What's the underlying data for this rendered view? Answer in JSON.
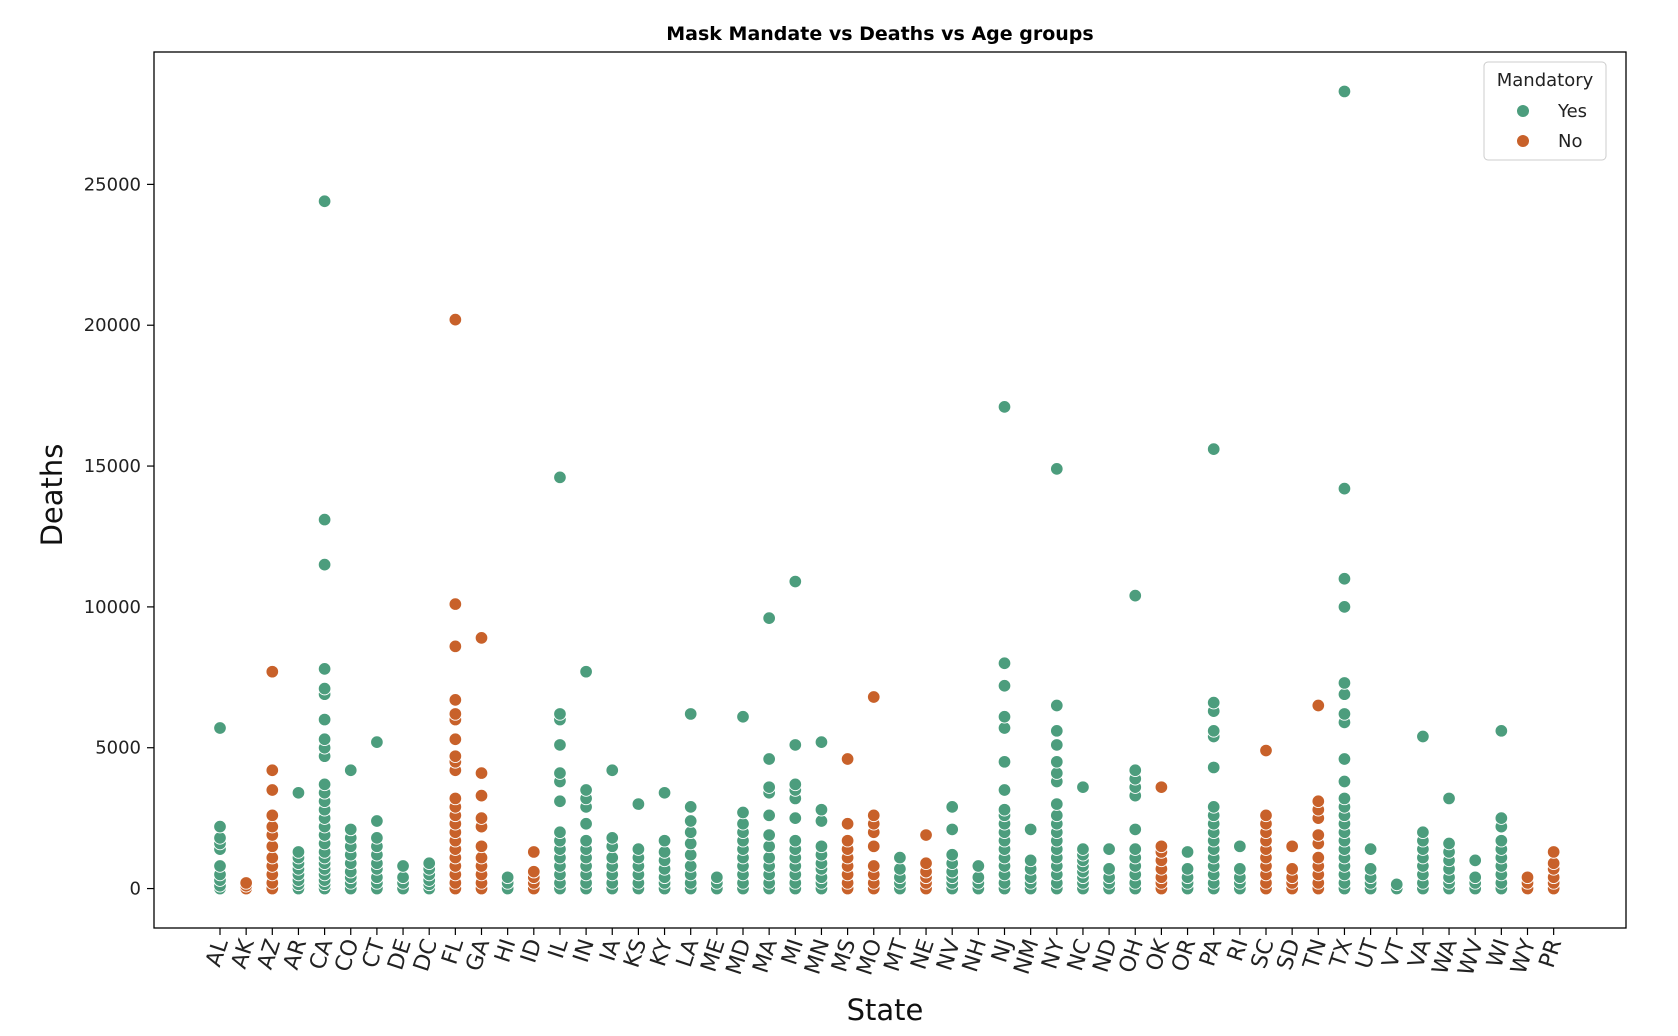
{
  "chart_data": {
    "type": "scatter",
    "title": "Mask Mandate vs Deaths vs Age groups",
    "xlabel": "State",
    "ylabel": "Deaths",
    "ylim": [
      -1400,
      29700
    ],
    "yticks": [
      0,
      5000,
      10000,
      15000,
      20000,
      25000
    ],
    "grid": false,
    "legend": {
      "title": "Mandatory",
      "position": "top-right"
    },
    "categories": [
      "AL",
      "AK",
      "AZ",
      "AR",
      "CA",
      "CO",
      "CT",
      "DE",
      "DC",
      "FL",
      "GA",
      "HI",
      "ID",
      "IL",
      "IN",
      "IA",
      "KS",
      "KY",
      "LA",
      "ME",
      "MD",
      "MA",
      "MI",
      "MN",
      "MS",
      "MO",
      "MT",
      "NE",
      "NV",
      "NH",
      "NJ",
      "NM",
      "NY",
      "NC",
      "ND",
      "OH",
      "OK",
      "OR",
      "PA",
      "RI",
      "SC",
      "SD",
      "TN",
      "TX",
      "UT",
      "VT",
      "VA",
      "WA",
      "WV",
      "WI",
      "WY",
      "PR"
    ],
    "series": [
      {
        "name": "Yes",
        "color": "#4c9d7d",
        "points": [
          {
            "x": "AL",
            "y": [
              0,
              100,
              300,
              500,
              800,
              1400,
              1600,
              1800,
              2200,
              5700
            ]
          },
          {
            "x": "AR",
            "y": [
              0,
              150,
              300,
              500,
              700,
              900,
              1100,
              1300,
              3400
            ]
          },
          {
            "x": "CA",
            "y": [
              0,
              150,
              300,
              500,
              700,
              900,
              1100,
              1300,
              1600,
              1900,
              2200,
              2500,
              2800,
              3100,
              3400,
              3700,
              4700,
              5000,
              5300,
              6000,
              6900,
              7100,
              7800,
              11500,
              13100,
              24400
            ]
          },
          {
            "x": "CO",
            "y": [
              0,
              200,
              400,
              600,
              900,
              1200,
              1500,
              1800,
              2100,
              4200
            ]
          },
          {
            "x": "CT",
            "y": [
              0,
              200,
              400,
              700,
              900,
              1200,
              1500,
              1800,
              2400,
              5200
            ]
          },
          {
            "x": "DE",
            "y": [
              0,
              200,
              400,
              800
            ]
          },
          {
            "x": "DC",
            "y": [
              0,
              150,
              300,
              500,
              700,
              900
            ]
          },
          {
            "x": "HI",
            "y": [
              0,
              200,
              400
            ]
          },
          {
            "x": "IL",
            "y": [
              0,
              200,
              500,
              800,
              1100,
              1400,
              1700,
              2000,
              3100,
              3800,
              4100,
              5100,
              6000,
              6200,
              14600
            ]
          },
          {
            "x": "IN",
            "y": [
              0,
              200,
              500,
              800,
              1100,
              1400,
              1700,
              2300,
              2900,
              3200,
              3500,
              7700
            ]
          },
          {
            "x": "IA",
            "y": [
              0,
              200,
              500,
              800,
              1100,
              1500,
              1800,
              4200
            ]
          },
          {
            "x": "KS",
            "y": [
              0,
              200,
              500,
              800,
              1100,
              1400,
              3000
            ]
          },
          {
            "x": "KY",
            "y": [
              0,
              200,
              400,
              700,
              1000,
              1300,
              1700,
              3400
            ]
          },
          {
            "x": "LA",
            "y": [
              0,
              200,
              500,
              800,
              1200,
              1600,
              2000,
              2400,
              2900,
              6200
            ]
          },
          {
            "x": "ME",
            "y": [
              0,
              200,
              400
            ]
          },
          {
            "x": "MD",
            "y": [
              0,
              200,
              500,
              800,
              1100,
              1400,
              1700,
              2000,
              2300,
              2700,
              6100
            ]
          },
          {
            "x": "MA",
            "y": [
              0,
              200,
              500,
              800,
              1100,
              1500,
              1900,
              2600,
              3400,
              3600,
              4600,
              9600
            ]
          },
          {
            "x": "MI",
            "y": [
              0,
              200,
              500,
              800,
              1100,
              1400,
              1700,
              2500,
              3200,
              3500,
              3700,
              5100,
              10900
            ]
          },
          {
            "x": "MN",
            "y": [
              0,
              200,
              400,
              700,
              900,
              1200,
              1500,
              2400,
              2800,
              5200
            ]
          },
          {
            "x": "MT",
            "y": [
              0,
              200,
              400,
              700,
              1100
            ]
          },
          {
            "x": "NV",
            "y": [
              0,
              200,
              400,
              600,
              900,
              1200,
              2100,
              2900
            ]
          },
          {
            "x": "NH",
            "y": [
              0,
              200,
              400,
              800
            ]
          },
          {
            "x": "NJ",
            "y": [
              0,
              200,
              500,
              800,
              1100,
              1400,
              1700,
              2000,
              2300,
              2600,
              2800,
              3500,
              4500,
              5700,
              6100,
              7200,
              8000,
              17100
            ]
          },
          {
            "x": "NM",
            "y": [
              0,
              200,
              400,
              700,
              1000,
              2100
            ]
          },
          {
            "x": "NY",
            "y": [
              0,
              200,
              500,
              800,
              1100,
              1400,
              1700,
              2000,
              2300,
              2600,
              3000,
              3800,
              4100,
              4500,
              5100,
              5600,
              6500,
              14900
            ]
          },
          {
            "x": "NC",
            "y": [
              0,
              200,
              400,
              600,
              800,
              1000,
              1200,
              1400,
              3600
            ]
          },
          {
            "x": "ND",
            "y": [
              0,
              200,
              400,
              700,
              1400
            ]
          },
          {
            "x": "OH",
            "y": [
              0,
              200,
              500,
              800,
              1100,
              1400,
              2100,
              3300,
              3600,
              3900,
              4200,
              10400
            ]
          },
          {
            "x": "OR",
            "y": [
              0,
              200,
              400,
              700,
              1300
            ]
          },
          {
            "x": "PA",
            "y": [
              0,
              200,
              500,
              800,
              1100,
              1400,
              1700,
              2000,
              2300,
              2600,
              2900,
              4300,
              5400,
              5600,
              6300,
              6600,
              15600
            ]
          },
          {
            "x": "RI",
            "y": [
              0,
              200,
              400,
              700,
              1500
            ]
          },
          {
            "x": "TX",
            "y": [
              0,
              200,
              500,
              800,
              1100,
              1400,
              1700,
              2000,
              2300,
              2600,
              2900,
              3200,
              3800,
              4600,
              5900,
              6200,
              6900,
              7300,
              10000,
              11000,
              14200,
              28300
            ]
          },
          {
            "x": "UT",
            "y": [
              0,
              200,
              400,
              700,
              1400
            ]
          },
          {
            "x": "VT",
            "y": [
              0,
              150
            ]
          },
          {
            "x": "VA",
            "y": [
              0,
              200,
              500,
              800,
              1100,
              1400,
              1700,
              2000,
              5400
            ]
          },
          {
            "x": "WA",
            "y": [
              0,
              200,
              400,
              700,
              1000,
              1300,
              1600,
              3200
            ]
          },
          {
            "x": "WV",
            "y": [
              0,
              200,
              400,
              1000
            ]
          },
          {
            "x": "WI",
            "y": [
              0,
              200,
              500,
              800,
              1100,
              1400,
              1700,
              2200,
              2500,
              5600
            ]
          }
        ]
      },
      {
        "name": "No",
        "color": "#c8612a",
        "points": [
          {
            "x": "AK",
            "y": [
              0,
              100,
              200
            ]
          },
          {
            "x": "AZ",
            "y": [
              0,
              200,
              500,
              800,
              1100,
              1500,
              1900,
              2200,
              2600,
              3500,
              4200,
              7700
            ]
          },
          {
            "x": "FL",
            "y": [
              0,
              200,
              500,
              800,
              1100,
              1400,
              1700,
              2000,
              2300,
              2600,
              2900,
              3200,
              4200,
              4500,
              4700,
              5300,
              6000,
              6200,
              6700,
              8600,
              10100,
              20200
            ]
          },
          {
            "x": "GA",
            "y": [
              0,
              200,
              500,
              800,
              1100,
              1500,
              2200,
              2500,
              3300,
              4100,
              8900
            ]
          },
          {
            "x": "ID",
            "y": [
              0,
              200,
              400,
              600,
              1300
            ]
          },
          {
            "x": "MS",
            "y": [
              0,
              200,
              500,
              800,
              1100,
              1400,
              1700,
              2300,
              4600
            ]
          },
          {
            "x": "MO",
            "y": [
              0,
              200,
              500,
              800,
              1500,
              2000,
              2300,
              2600,
              6800
            ]
          },
          {
            "x": "NE",
            "y": [
              0,
              200,
              400,
              600,
              900,
              1900
            ]
          },
          {
            "x": "OK",
            "y": [
              0,
              200,
              400,
              700,
              1000,
              1300,
              1500,
              3600
            ]
          },
          {
            "x": "SC",
            "y": [
              0,
              200,
              500,
              800,
              1100,
              1400,
              1700,
              2000,
              2300,
              2600,
              4900
            ]
          },
          {
            "x": "SD",
            "y": [
              0,
              200,
              400,
              700,
              1500
            ]
          },
          {
            "x": "TN",
            "y": [
              0,
              200,
              500,
              800,
              1100,
              1600,
              1900,
              2500,
              2800,
              3100,
              6500
            ]
          },
          {
            "x": "WY",
            "y": [
              0,
              200,
              400
            ]
          },
          {
            "x": "PR",
            "y": [
              0,
              200,
              400,
              700,
              900,
              1300
            ]
          }
        ]
      }
    ]
  }
}
